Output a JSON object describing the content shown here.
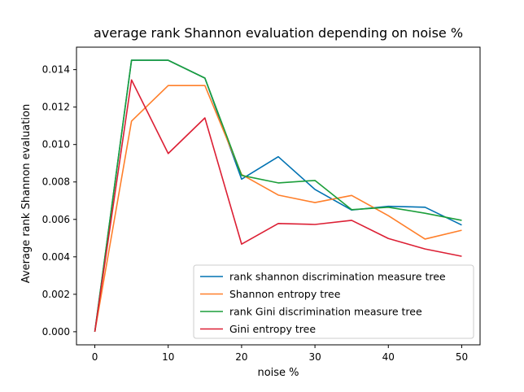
{
  "chart_data": {
    "type": "line",
    "title": "average rank Shannon evaluation depending on noise %",
    "xlabel": "noise %",
    "ylabel": "Average rank Shannon evaluation",
    "xlim": [
      -2.5,
      52.5
    ],
    "ylim": [
      -0.0007,
      0.0152
    ],
    "xticks": [
      0,
      10,
      20,
      30,
      40,
      50
    ],
    "xtick_labels": [
      "0",
      "10",
      "20",
      "30",
      "40",
      "50"
    ],
    "yticks": [
      0.0,
      0.002,
      0.004,
      0.006,
      0.008,
      0.01,
      0.012,
      0.014
    ],
    "ytick_labels": [
      "0.000",
      "0.002",
      "0.004",
      "0.006",
      "0.008",
      "0.010",
      "0.012",
      "0.014"
    ],
    "grid": false,
    "legend_position": "lower-right",
    "x": [
      0,
      5,
      10,
      15,
      20,
      25,
      30,
      35,
      40,
      45,
      50
    ],
    "series": [
      {
        "name": "rank shannon discrimination measure tree",
        "color": "#0072b2",
        "values": [
          0.0,
          0.0145,
          0.0145,
          0.01355,
          0.00815,
          0.00935,
          0.0076,
          0.0065,
          0.0067,
          0.00665,
          0.0057
        ]
      },
      {
        "name": "Shannon entropy tree",
        "color": "#ff7f2a",
        "values": [
          0.0,
          0.01125,
          0.01315,
          0.01315,
          0.0084,
          0.0073,
          0.0069,
          0.00728,
          0.0062,
          0.00495,
          0.00542
        ]
      },
      {
        "name": "rank Gini discrimination measure tree",
        "color": "#1b9e3a",
        "values": [
          0.0,
          0.0145,
          0.0145,
          0.01355,
          0.00835,
          0.00795,
          0.00808,
          0.00652,
          0.00665,
          0.00633,
          0.00595
        ]
      },
      {
        "name": "Gini entropy tree",
        "color": "#dc1f34",
        "values": [
          0.0,
          0.01345,
          0.00952,
          0.01142,
          0.00468,
          0.00578,
          0.00573,
          0.00595,
          0.00498,
          0.00442,
          0.00403
        ]
      }
    ]
  }
}
